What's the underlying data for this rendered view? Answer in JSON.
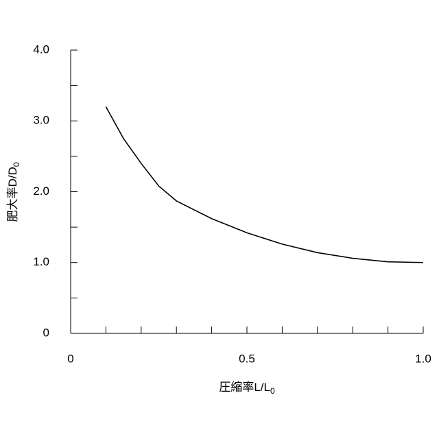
{
  "chart_data": {
    "type": "line",
    "x": [
      0.1,
      0.15,
      0.2,
      0.25,
      0.3,
      0.4,
      0.5,
      0.6,
      0.7,
      0.8,
      0.9,
      1.0
    ],
    "values": [
      3.2,
      2.75,
      2.4,
      2.08,
      1.87,
      1.62,
      1.42,
      1.26,
      1.14,
      1.06,
      1.01,
      1.0
    ],
    "color": "#000000",
    "xlim": [
      0,
      1.0
    ],
    "ylim": [
      0,
      4.0
    ],
    "xticks": [
      0,
      0.5,
      {
        "value": 1.0,
        "label": "1.0"
      }
    ],
    "yticks": [
      0,
      {
        "value": 1.0,
        "label": "1.0"
      },
      {
        "value": 2.0,
        "label": "2.0"
      },
      {
        "value": 3.0,
        "label": "3.0"
      },
      {
        "value": 4.0,
        "label": "4.0"
      }
    ],
    "x_minor_ticks": [
      0.1,
      0.2,
      0.3,
      0.4,
      0.6,
      0.7,
      0.8,
      0.9
    ],
    "y_minor_ticks": [
      0.5,
      1.5,
      2.5,
      3.5
    ],
    "xlabel": {
      "main": "圧縮率L/L",
      "sub": "0"
    },
    "ylabel": {
      "main": "肥大率D/D",
      "sub": "0"
    }
  }
}
